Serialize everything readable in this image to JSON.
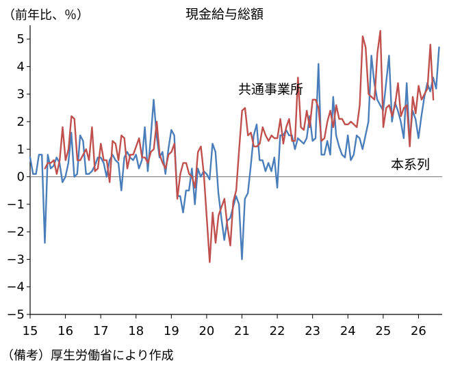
{
  "chart_data": {
    "type": "line",
    "title": "現金給与総額",
    "unit_label": "（前年比、％）",
    "source": "（備考）厚生労働省により作成",
    "ylim": [
      -5,
      5.5
    ],
    "y_ticks": [
      -5,
      -4,
      -3,
      -2,
      -1,
      0,
      1,
      2,
      3,
      4,
      5
    ],
    "y_tick_labels": [
      "−5",
      "−4",
      "−3",
      "−2",
      "−1",
      "0",
      "1",
      "2",
      "3",
      "4",
      "5"
    ],
    "x_ticks": [
      15,
      16,
      17,
      18,
      19,
      20,
      21,
      22,
      23,
      24,
      25,
      26
    ],
    "x_tick_labels": [
      "15",
      "16",
      "17",
      "18",
      "19",
      "20",
      "21",
      "22",
      "23",
      "24",
      "25",
      "26"
    ],
    "zero_line": true,
    "grid": false,
    "series": [
      {
        "name": "本系列",
        "color": "#4a7ebb",
        "x_start": 15.0,
        "step": 0.08333,
        "values": [
          0.7,
          0.1,
          0.1,
          0.8,
          0.8,
          -2.4,
          0.8,
          0.3,
          0.4,
          0.7,
          0.5,
          -0.2,
          0.0,
          0.5,
          1.6,
          0.0,
          0.1,
          1.5,
          1.3,
          0.1,
          0.1,
          0.2,
          0.4,
          0.7,
          0.7,
          0.5,
          0.0,
          0.6,
          0.8,
          0.6,
          0.5,
          -0.5,
          0.7,
          0.9,
          0.7,
          0.6,
          0.8,
          0.3,
          0.6,
          1.8,
          0.2,
          1.4,
          2.8,
          1.5,
          0.7,
          0.9,
          0.1,
          1.0,
          1.7,
          1.5,
          -0.7,
          -0.7,
          -1.3,
          -0.5,
          -0.5,
          0.3,
          -1.0,
          0.3,
          0.0,
          0.2,
          0.1,
          -0.1,
          1.2,
          0.9,
          -0.6,
          -1.5,
          -2.3,
          -1.6,
          -1.5,
          -1.1,
          -0.7,
          -1.0,
          -3.0,
          -0.8,
          -0.6,
          0.4,
          1.5,
          1.9,
          0.6,
          0.6,
          0.2,
          0.5,
          0.2,
          0.7,
          -0.4,
          1.5,
          1.5,
          1.7,
          1.5,
          1.5,
          1.0,
          1.4,
          1.3,
          1.2,
          1.4,
          2.2,
          1.3,
          1.4,
          4.1,
          0.8,
          0.8,
          1.3,
          0.8,
          2.9,
          1.5,
          1.1,
          0.8,
          0.7,
          1.5,
          0.6,
          0.8,
          1.5,
          1.4,
          1.0,
          1.5,
          2.0,
          4.4,
          3.4,
          2.8,
          2.6,
          2.4,
          3.4,
          4.4,
          2.0,
          2.7,
          2.4,
          2.0,
          1.4,
          3.4,
          1.3,
          2.4,
          2.1,
          1.4,
          2.2,
          2.9,
          3.4,
          3.1,
          3.6,
          3.2,
          4.7
        ]
      },
      {
        "name": "共通事業所",
        "color": "#c0504d",
        "x_start": 15.42,
        "step": 0.08333,
        "values": [
          0.3,
          0.5,
          0.5,
          0.6,
          0.1,
          0.6,
          1.8,
          0.6,
          1.0,
          2.2,
          2.1,
          0.6,
          0.6,
          0.8,
          1.0,
          0.6,
          1.8,
          0.2,
          0.3,
          1.2,
          0.6,
          0.6,
          -0.2,
          1.3,
          1.2,
          0.6,
          1.5,
          1.4,
          0.3,
          0.8,
          0.8,
          1.1,
          1.4,
          0.7,
          0.7,
          0.5,
          0.9,
          1.0,
          2.0,
          0.8,
          0.5,
          0.3,
          0.8,
          0.9,
          1.2,
          -0.8,
          0.1,
          0.5,
          0.5,
          0.1,
          0.0,
          -0.4,
          0.9,
          1.1,
          0.1,
          -1.5,
          -3.1,
          -1.3,
          -2.4,
          -1.4,
          -1.1,
          -0.8,
          -1.8,
          -2.5,
          -0.9,
          -0.5,
          1.0,
          2.4,
          2.5,
          1.5,
          1.6,
          1.1,
          1.1,
          1.2,
          1.8,
          1.5,
          1.3,
          1.5,
          1.4,
          1.4,
          2.1,
          1.2,
          1.8,
          2.1,
          1.3,
          1.3,
          3.6,
          1.8,
          1.7,
          2.4,
          1.8,
          2.8,
          2.8,
          2.5,
          1.3,
          1.4,
          2.0,
          2.4,
          1.8,
          2.6,
          2.1,
          2.1,
          1.9,
          1.9,
          2.0,
          1.9,
          1.8,
          2.6,
          5.1,
          4.7,
          3.0,
          2.9,
          2.8,
          4.5,
          5.3,
          1.8,
          2.5,
          2.6,
          2.2,
          2.6,
          3.4,
          2.2,
          2.5,
          2.6,
          1.1,
          2.9,
          2.3,
          3.3,
          2.8,
          3.0,
          3.2,
          4.8,
          2.8
        ]
      }
    ]
  },
  "labels": {
    "series_1": "本系列",
    "series_2": "共通事業所"
  }
}
